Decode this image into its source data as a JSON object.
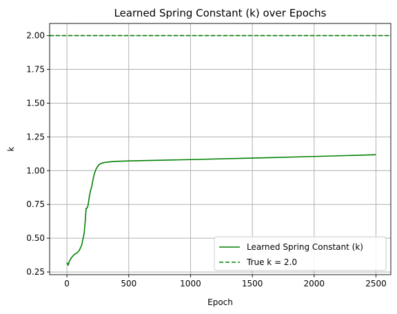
{
  "chart_data": {
    "type": "line",
    "title": "Learned Spring Constant (k) over Epochs",
    "xlabel": "Epoch",
    "ylabel": "k",
    "xlim": [
      -140,
      2620
    ],
    "ylim": [
      0.23,
      2.09
    ],
    "xticks": [
      0,
      500,
      1000,
      1500,
      2000,
      2500
    ],
    "xtick_labels": [
      "0",
      "500",
      "1000",
      "1500",
      "2000",
      "2500"
    ],
    "yticks": [
      0.25,
      0.5,
      0.75,
      1.0,
      1.25,
      1.5,
      1.75,
      2.0
    ],
    "ytick_labels": [
      "0.25",
      "0.50",
      "0.75",
      "1.00",
      "1.25",
      "1.50",
      "1.75",
      "2.00"
    ],
    "grid": true,
    "legend_position": "bottom-right",
    "series": [
      {
        "name": "Learned Spring Constant (k)",
        "color": "#008000",
        "style": "solid",
        "x": [
          0,
          10,
          20,
          40,
          60,
          80,
          100,
          120,
          140,
          150,
          155,
          160,
          165,
          170,
          180,
          190,
          200,
          210,
          220,
          230,
          240,
          260,
          280,
          300,
          350,
          400,
          500,
          1000,
          1500,
          2000,
          2500
        ],
        "y": [
          0.32,
          0.3,
          0.33,
          0.36,
          0.38,
          0.39,
          0.41,
          0.45,
          0.54,
          0.65,
          0.72,
          0.72,
          0.73,
          0.74,
          0.8,
          0.85,
          0.88,
          0.93,
          0.97,
          1.0,
          1.02,
          1.045,
          1.055,
          1.06,
          1.066,
          1.069,
          1.072,
          1.082,
          1.093,
          1.105,
          1.118
        ]
      },
      {
        "name": "True k = 2.0",
        "color": "#008000",
        "style": "dashed",
        "x": [
          -140,
          2620
        ],
        "y": [
          2.0,
          2.0
        ]
      }
    ]
  }
}
